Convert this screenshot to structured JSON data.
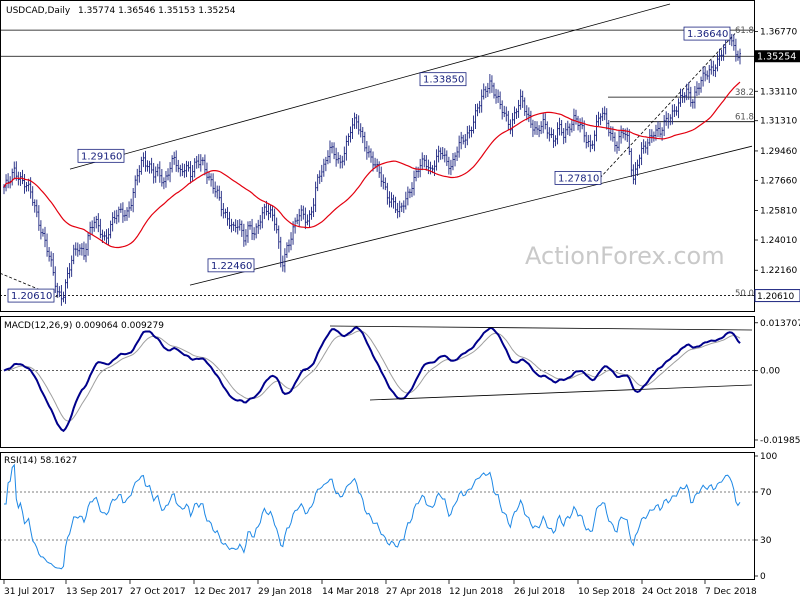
{
  "colors": {
    "candle": "#1a237e",
    "sma": "#e3000f",
    "macd": "#00008b",
    "signal": "#a0a0a0",
    "rsi": "#1e88e5",
    "grid": "#000000"
  },
  "watermark": "ActionForex.com",
  "chart_data": [
    {
      "type": "candlestick",
      "title": "USDCAD,Daily",
      "ohlc_header": [
        "1.35774",
        "1.36546",
        "1.35153",
        "1.35254"
      ],
      "ylim": [
        1.1985,
        1.3845
      ],
      "yticks": [
        "1.36770",
        "1.33110",
        "1.31310",
        "1.29460",
        "1.27660",
        "1.25810",
        "1.24010",
        "1.22160"
      ],
      "current_price": "1.35254",
      "price_labels": [
        {
          "text": "1.36640",
          "price": 1.3664,
          "date_index": 357
        },
        {
          "text": "1.33850",
          "price": 1.3385,
          "date_index": 229
        },
        {
          "text": "1.29160",
          "price": 1.2916,
          "date_index": 60
        },
        {
          "text": "1.27810",
          "price": 1.2781,
          "date_index": 300
        },
        {
          "text": "1.22460",
          "price": 1.2246,
          "date_index": 128
        },
        {
          "text": "1.20610",
          "price": 1.2061,
          "date_index": 28
        }
      ],
      "fibonacci": [
        {
          "text": "61.8",
          "price": 1.3655
        },
        {
          "text": "38.2",
          "price": 1.3275
        },
        {
          "text": "61.8",
          "price": 1.3125
        },
        {
          "text": "50.0",
          "price": 1.2045
        },
        {
          "text": "1.20610",
          "price": 1.2061
        }
      ],
      "levels": [
        1.3685,
        1.35254,
        1.3275,
        1.3125,
        1.2061
      ],
      "x_labels": [
        "31 Jul 2017",
        "13 Sep 2017",
        "27 Oct 2017",
        "12 Dec 2017",
        "29 Jan 2018",
        "14 Mar 2018",
        "27 Apr 2018",
        "12 Jun 2018",
        "26 Jul 2018",
        "10 Sep 2018",
        "24 Oct 2018",
        "7 Dec 2018"
      ],
      "closes": [
        1.2725,
        1.275,
        1.283,
        1.279,
        1.274,
        1.268,
        1.258,
        1.247,
        1.235,
        1.222,
        1.209,
        1.2061,
        1.218,
        1.231,
        1.238,
        1.232,
        1.243,
        1.252,
        1.248,
        1.24,
        1.247,
        1.256,
        1.26,
        1.255,
        1.263,
        1.281,
        1.2916,
        1.285,
        1.279,
        1.283,
        1.276,
        1.283,
        1.289,
        1.282,
        1.287,
        1.279,
        1.286,
        1.291,
        1.282,
        1.272,
        1.268,
        1.26,
        1.253,
        1.245,
        1.25,
        1.243,
        1.249,
        1.241,
        1.253,
        1.262,
        1.256,
        1.248,
        1.2246,
        1.236,
        1.243,
        1.253,
        1.258,
        1.252,
        1.261,
        1.279,
        1.286,
        1.298,
        1.291,
        1.285,
        1.298,
        1.309,
        1.312,
        1.304,
        1.297,
        1.289,
        1.282,
        1.276,
        1.268,
        1.262,
        1.255,
        1.264,
        1.271,
        1.277,
        1.285,
        1.29,
        1.283,
        1.288,
        1.294,
        1.289,
        1.286,
        1.295,
        1.301,
        1.306,
        1.313,
        1.321,
        1.33,
        1.3385,
        1.33,
        1.321,
        1.316,
        1.311,
        1.319,
        1.325,
        1.318,
        1.312,
        1.305,
        1.311,
        1.308,
        1.302,
        1.308,
        1.303,
        1.311,
        1.316,
        1.309,
        1.302,
        1.298,
        1.31,
        1.317,
        1.312,
        1.304,
        1.298,
        1.306,
        1.301,
        1.2781,
        1.29,
        1.295,
        1.302,
        1.309,
        1.305,
        1.311,
        1.317,
        1.322,
        1.326,
        1.33,
        1.326,
        1.334,
        1.338,
        1.342,
        1.347,
        1.351,
        1.357,
        1.3664,
        1.3575,
        1.35254
      ],
      "sma_note": "red moving average",
      "macd": {
        "label": "MACD(12,26,9) 0.009064 0.009279",
        "yticks": [
          "0.013707",
          "0.00",
          "-0.019852"
        ],
        "ylim": [
          -0.021,
          0.0145
        ]
      },
      "rsi": {
        "label": "RSI(14) 58.1627",
        "yticks": [
          "100",
          "70",
          "30",
          "0"
        ],
        "ylim": [
          0,
          100
        ]
      }
    }
  ]
}
